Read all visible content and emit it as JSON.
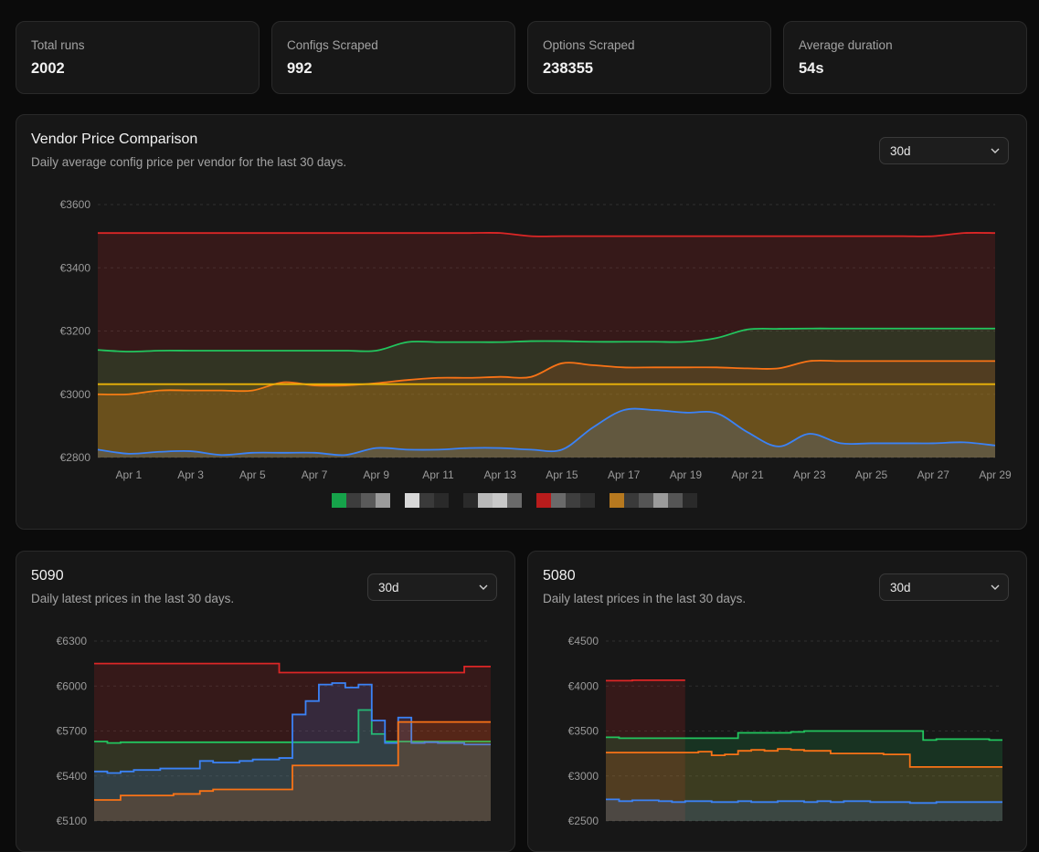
{
  "stats": [
    {
      "label": "Total runs",
      "value": "2002"
    },
    {
      "label": "Configs Scraped",
      "value": "992"
    },
    {
      "label": "Options Scraped",
      "value": "238355"
    },
    {
      "label": "Average duration",
      "value": "54s"
    }
  ],
  "vendor_chart": {
    "title": "Vendor Price Comparison",
    "subtitle": "Daily average config price per vendor for the last 30 days.",
    "range_select": "30d"
  },
  "card_5090": {
    "title": "5090",
    "subtitle": "Daily latest prices in the last 30 days.",
    "range_select": "30d"
  },
  "card_5080": {
    "title": "5080",
    "subtitle": "Daily latest prices in the last 30 days.",
    "range_select": "30d"
  },
  "colors": {
    "red": "#dc2626",
    "green": "#22c55e",
    "orange": "#f97316",
    "yellow": "#eab308",
    "blue": "#3b82f6",
    "grid": "#333333"
  },
  "legend_colors": [
    "#16a34a",
    "#ffffff",
    "#b9b9b9",
    "#b91c1c",
    "#b7791f"
  ],
  "chart_data": [
    {
      "type": "area",
      "id": "vendor",
      "ylim": [
        2800,
        3600
      ],
      "yticks": [
        2800,
        3000,
        3200,
        3400,
        3600
      ],
      "ytick_labels": [
        "€2800",
        "€3000",
        "€3200",
        "€3400",
        "€3600"
      ],
      "xlim": [
        0,
        29
      ],
      "xticks": [
        1,
        3,
        5,
        7,
        9,
        11,
        13,
        15,
        17,
        19,
        21,
        23,
        25,
        27,
        29
      ],
      "xtick_labels": [
        "Apr 1",
        "Apr 3",
        "Apr 5",
        "Apr 7",
        "Apr 9",
        "Apr 11",
        "Apr 13",
        "Apr 15",
        "Apr 17",
        "Apr 19",
        "Apr 21",
        "Apr 23",
        "Apr 25",
        "Apr 27",
        "Apr 29"
      ],
      "curve": "smooth",
      "series": [
        {
          "color": "#dc2626",
          "values": [
            3510,
            3510,
            3510,
            3510,
            3510,
            3510,
            3510,
            3510,
            3510,
            3510,
            3510,
            3510,
            3510,
            3510,
            3500,
            3500,
            3500,
            3500,
            3500,
            3500,
            3500,
            3500,
            3500,
            3500,
            3500,
            3500,
            3500,
            3500,
            3510,
            3510
          ]
        },
        {
          "color": "#22c55e",
          "values": [
            3140,
            3135,
            3138,
            3138,
            3138,
            3138,
            3138,
            3138,
            3138,
            3138,
            3165,
            3165,
            3165,
            3165,
            3168,
            3168,
            3166,
            3166,
            3166,
            3166,
            3178,
            3205,
            3207,
            3208,
            3208,
            3208,
            3208,
            3208,
            3208,
            3208
          ]
        },
        {
          "color": "#f97316",
          "values": [
            3000,
            3000,
            3012,
            3012,
            3012,
            3012,
            3038,
            3028,
            3028,
            3035,
            3045,
            3052,
            3052,
            3055,
            3055,
            3098,
            3092,
            3085,
            3085,
            3085,
            3085,
            3082,
            3082,
            3105,
            3105,
            3105,
            3105,
            3105,
            3105,
            3105
          ]
        },
        {
          "color": "#eab308",
          "values": [
            3032,
            3032,
            3032,
            3032,
            3032,
            3032,
            3032,
            3032,
            3032,
            3032,
            3032,
            3032,
            3032,
            3032,
            3032,
            3032,
            3032,
            3032,
            3032,
            3032,
            3032,
            3032,
            3032,
            3032,
            3032,
            3032,
            3032,
            3032,
            3032,
            3032
          ]
        },
        {
          "color": "#3b82f6",
          "values": [
            2825,
            2812,
            2818,
            2820,
            2808,
            2815,
            2815,
            2815,
            2808,
            2830,
            2825,
            2825,
            2830,
            2830,
            2825,
            2825,
            2895,
            2950,
            2950,
            2942,
            2940,
            2880,
            2835,
            2875,
            2845,
            2845,
            2845,
            2845,
            2848,
            2838
          ]
        }
      ]
    },
    {
      "type": "area",
      "id": "5090",
      "ylim": [
        5100,
        6300
      ],
      "yticks": [
        5100,
        5400,
        5700,
        6000,
        6300
      ],
      "ytick_labels": [
        "€5100",
        "€5400",
        "€5700",
        "€6000",
        "€6300"
      ],
      "xlim": [
        0,
        29
      ],
      "curve": "step",
      "series": [
        {
          "color": "#dc2626",
          "values": [
            6150,
            6150,
            6150,
            6150,
            6150,
            6150,
            6150,
            6150,
            6150,
            6150,
            6150,
            6150,
            6150,
            6150,
            6090,
            6090,
            6090,
            6090,
            6090,
            6090,
            6090,
            6090,
            6090,
            6090,
            6090,
            6090,
            6090,
            6090,
            6130,
            6130
          ]
        },
        {
          "color": "#22c55e",
          "values": [
            5630,
            5620,
            5625,
            5625,
            5625,
            5625,
            5625,
            5625,
            5625,
            5625,
            5625,
            5625,
            5625,
            5625,
            5625,
            5625,
            5625,
            5625,
            5625,
            5625,
            5840,
            5680,
            5630,
            5630,
            5630,
            5630,
            5630,
            5630,
            5630,
            5630
          ]
        },
        {
          "color": "#3b82f6",
          "values": [
            5430,
            5420,
            5430,
            5440,
            5440,
            5450,
            5450,
            5450,
            5500,
            5490,
            5490,
            5500,
            5510,
            5510,
            5520,
            5810,
            5900,
            6010,
            6020,
            5990,
            6010,
            5770,
            5620,
            5790,
            5620,
            5625,
            5620,
            5620,
            5610,
            5610
          ]
        },
        {
          "color": "#f97316",
          "values": [
            5240,
            5240,
            5270,
            5270,
            5270,
            5270,
            5280,
            5280,
            5300,
            5310,
            5310,
            5310,
            5310,
            5310,
            5310,
            5470,
            5470,
            5470,
            5470,
            5470,
            5470,
            5470,
            5470,
            5760,
            5760,
            5760,
            5760,
            5760,
            5760,
            5760
          ]
        }
      ]
    },
    {
      "type": "area",
      "id": "5080",
      "ylim": [
        2500,
        4500
      ],
      "yticks": [
        2500,
        3000,
        3500,
        4000,
        4500
      ],
      "ytick_labels": [
        "€2500",
        "€3000",
        "€3500",
        "€4000",
        "€4500"
      ],
      "xlim": [
        0,
        29
      ],
      "curve": "step",
      "series": [
        {
          "color": "#dc2626",
          "values": [
            4060,
            4060,
            4065,
            4065,
            4065,
            4065,
            null,
            null,
            null,
            null,
            null,
            null,
            null,
            null,
            null,
            null,
            null,
            null,
            null,
            null,
            null,
            null,
            null,
            null,
            null,
            null,
            null,
            null,
            null,
            null
          ]
        },
        {
          "color": "#22c55e",
          "values": [
            3430,
            3420,
            3420,
            3420,
            3420,
            3420,
            3420,
            3420,
            3420,
            3420,
            3480,
            3480,
            3480,
            3480,
            3490,
            3500,
            3500,
            3500,
            3500,
            3500,
            3500,
            3500,
            3500,
            3500,
            3400,
            3410,
            3410,
            3410,
            3410,
            3400
          ]
        },
        {
          "color": "#f97316",
          "values": [
            3260,
            3260,
            3260,
            3260,
            3260,
            3260,
            3260,
            3270,
            3230,
            3240,
            3280,
            3290,
            3280,
            3300,
            3290,
            3280,
            3280,
            3250,
            3250,
            3250,
            3250,
            3240,
            3240,
            3100,
            3100,
            3100,
            3100,
            3100,
            3100,
            3100
          ]
        },
        {
          "color": "#3b82f6",
          "values": [
            2740,
            2720,
            2730,
            2730,
            2720,
            2710,
            2720,
            2720,
            2710,
            2710,
            2720,
            2710,
            2710,
            2720,
            2720,
            2710,
            2720,
            2710,
            2720,
            2720,
            2710,
            2710,
            2710,
            2700,
            2700,
            2710,
            2710,
            2710,
            2710,
            2710
          ]
        }
      ]
    }
  ]
}
